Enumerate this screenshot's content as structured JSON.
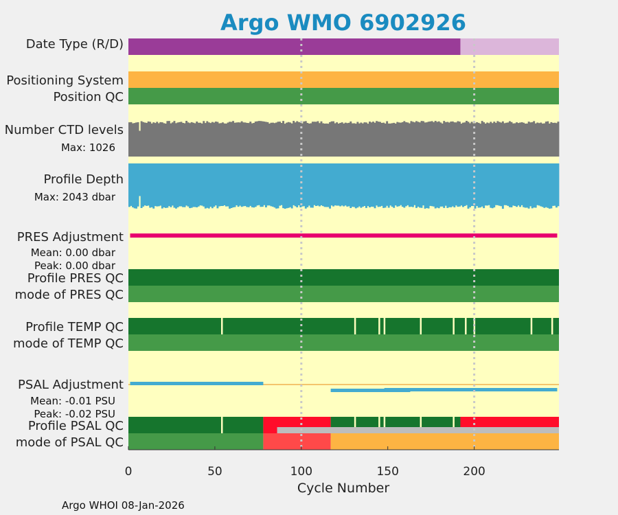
{
  "chart_data": {
    "type": "bar",
    "title": "Argo WMO 6902926",
    "xlabel": "Cycle Number",
    "xlim": [
      0,
      249
    ],
    "xticks": [
      0,
      50,
      100,
      150,
      200
    ],
    "grid_x": [
      100,
      200
    ],
    "rows": [
      {
        "id": "date-type",
        "label": "Date Type (R/D)",
        "segments": [
          {
            "from": 0,
            "to": 192,
            "color": "#9a3c98"
          },
          {
            "from": 192,
            "to": 249,
            "color": "#dcb6da"
          }
        ]
      },
      {
        "id": "positioning-system",
        "label": "Positioning System",
        "segments": [
          {
            "from": 0,
            "to": 249,
            "color": "#fdb443"
          }
        ]
      },
      {
        "id": "position-qc",
        "label": "Position QC",
        "segments": [
          {
            "from": 0,
            "to": 249,
            "color": "#459a48"
          }
        ]
      },
      {
        "id": "number-ctd-levels",
        "label": "Number CTD levels",
        "sublabel": "Max: 1026",
        "sublabel_color": "#111111",
        "color": "#777777",
        "max": 1026,
        "base": "bottom"
      },
      {
        "id": "profile-depth",
        "label": "Profile Depth",
        "sublabel": "Max: 2043 dbar",
        "sublabel_color": "#1a8bc0",
        "color": "#43abd0",
        "max": 2043,
        "base": "top"
      },
      {
        "id": "pres-adjustment",
        "label": "PRES Adjustment",
        "sublabels": [
          "Mean: 0.00 dbar",
          "Peak: 0.00 dbar"
        ],
        "sublabel_color": "#e8006f",
        "color": "#e8006f",
        "mean": 0.0,
        "peak": 0.0
      },
      {
        "id": "profile-pres-qc",
        "label": "Profile PRES QC",
        "segments": [
          {
            "from": 0,
            "to": 249,
            "color": "#16752d"
          }
        ]
      },
      {
        "id": "mode-pres-qc",
        "label": "mode of PRES QC",
        "segments": [
          {
            "from": 0,
            "to": 249,
            "color": "#459a48"
          }
        ]
      },
      {
        "id": "profile-temp-qc",
        "label": "Profile TEMP QC",
        "segments": [
          {
            "from": 0,
            "to": 249,
            "color": "#16752d"
          }
        ],
        "gaps": [
          54,
          131,
          145,
          148,
          169,
          188,
          195,
          200,
          233,
          245
        ]
      },
      {
        "id": "mode-temp-qc",
        "label": "mode of TEMP QC",
        "segments": [
          {
            "from": 0,
            "to": 249,
            "color": "#459a48"
          }
        ]
      },
      {
        "id": "psal-adjustment",
        "label": "PSAL Adjustment",
        "sublabels": [
          "Mean: -0.01 PSU",
          "Peak: -0.02 PSU"
        ],
        "sublabel_color": "#1a8bc0",
        "color": "#43abd0",
        "mean": -0.01,
        "peak": -0.02
      },
      {
        "id": "profile-psal-qc",
        "label": "Profile PSAL QC",
        "segments": [
          {
            "from": 0,
            "to": 78,
            "color": "#16752d"
          },
          {
            "from": 78,
            "to": 117,
            "color": "#ff0d2a"
          },
          {
            "from": 117,
            "to": 192,
            "color": "#16752d"
          },
          {
            "from": 192,
            "to": 249,
            "color": "#ff0d2a"
          }
        ],
        "gaps": [
          54,
          131,
          145,
          148,
          169,
          188
        ]
      },
      {
        "id": "mode-psal-qc",
        "label": "mode of PSAL QC",
        "segments": [
          {
            "from": 0,
            "to": 78,
            "color": "#459a48"
          },
          {
            "from": 78,
            "to": 117,
            "color": "#ff4949"
          },
          {
            "from": 117,
            "to": 249,
            "color": "#fdb443"
          }
        ]
      }
    ]
  },
  "footer": "Argo WHOI 08-Jan-2026"
}
